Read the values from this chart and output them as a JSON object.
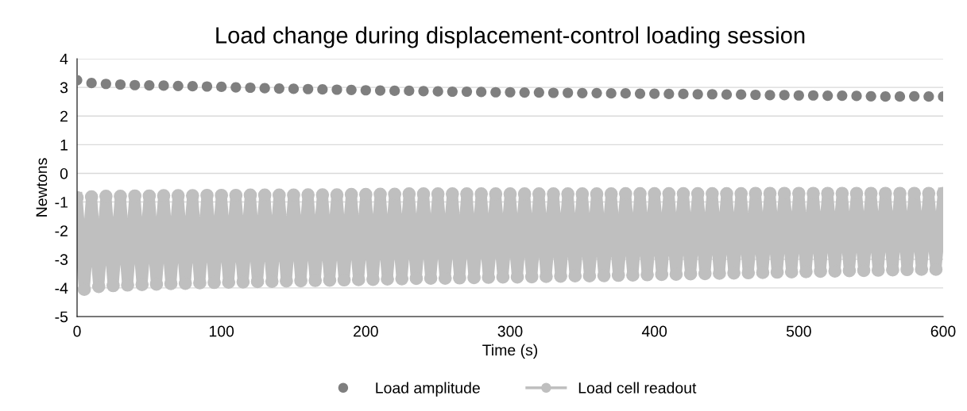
{
  "chart_data": {
    "type": "scatter",
    "title": "Load change during displacement-control loading session",
    "xlabel": "Time (s)",
    "ylabel": "Newtons",
    "xlim": [
      0,
      600
    ],
    "xticks": [
      0,
      100,
      200,
      300,
      400,
      500,
      600
    ],
    "ylim": [
      -5,
      4
    ],
    "yticks": [
      -5,
      -4,
      -3,
      -2,
      -1,
      0,
      1,
      2,
      3,
      4
    ],
    "grid": "y",
    "legend": "bottom",
    "marker": "circle",
    "series": [
      {
        "name": "Load amplitude",
        "color": "#7f7f7f",
        "x": [
          0,
          10,
          20,
          30,
          40,
          50,
          60,
          70,
          80,
          90,
          100,
          110,
          120,
          130,
          140,
          150,
          160,
          170,
          180,
          190,
          200,
          210,
          220,
          230,
          240,
          250,
          260,
          270,
          280,
          290,
          300,
          310,
          320,
          330,
          340,
          350,
          360,
          370,
          380,
          390,
          400,
          410,
          420,
          430,
          440,
          450,
          460,
          470,
          480,
          490,
          500,
          510,
          520,
          530,
          540,
          550,
          560,
          570,
          580,
          590,
          600
        ],
        "values": [
          3.25,
          3.15,
          3.12,
          3.1,
          3.08,
          3.07,
          3.06,
          3.05,
          3.04,
          3.03,
          3.02,
          3.0,
          2.99,
          2.97,
          2.96,
          2.95,
          2.94,
          2.93,
          2.92,
          2.91,
          2.9,
          2.89,
          2.88,
          2.88,
          2.87,
          2.86,
          2.85,
          2.85,
          2.84,
          2.83,
          2.83,
          2.82,
          2.82,
          2.81,
          2.81,
          2.8,
          2.8,
          2.79,
          2.79,
          2.78,
          2.78,
          2.77,
          2.77,
          2.76,
          2.76,
          2.75,
          2.75,
          2.74,
          2.73,
          2.73,
          2.72,
          2.72,
          2.71,
          2.71,
          2.7,
          2.69,
          2.68,
          2.68,
          2.69,
          2.68,
          2.68
        ]
      },
      {
        "name": "Load cell readout",
        "type": "line",
        "color": "#bfbfbf",
        "x": [
          0,
          5,
          10,
          15,
          20,
          25,
          30,
          35,
          40,
          45,
          50,
          55,
          60,
          65,
          70,
          75,
          80,
          85,
          90,
          95,
          100,
          105,
          110,
          115,
          120,
          125,
          130,
          135,
          140,
          145,
          150,
          155,
          160,
          165,
          170,
          175,
          180,
          185,
          190,
          195,
          200,
          205,
          210,
          215,
          220,
          225,
          230,
          235,
          240,
          245,
          250,
          255,
          260,
          265,
          270,
          275,
          280,
          285,
          290,
          295,
          300,
          305,
          310,
          315,
          320,
          325,
          330,
          335,
          340,
          345,
          350,
          355,
          360,
          365,
          370,
          375,
          380,
          385,
          390,
          395,
          400,
          405,
          410,
          415,
          420,
          425,
          430,
          435,
          440,
          445,
          450,
          455,
          460,
          465,
          470,
          475,
          480,
          485,
          490,
          495,
          500,
          505,
          510,
          515,
          520,
          525,
          530,
          535,
          540,
          545,
          550,
          555,
          560,
          565,
          570,
          575,
          580,
          585,
          590,
          595,
          600
        ],
        "values": [
          -0.85,
          -4.05,
          -0.82,
          -3.95,
          -0.8,
          -3.92,
          -0.8,
          -3.9,
          -0.79,
          -3.88,
          -0.79,
          -3.87,
          -0.78,
          -3.85,
          -0.78,
          -3.84,
          -0.78,
          -3.82,
          -0.77,
          -3.81,
          -0.77,
          -3.8,
          -0.77,
          -3.79,
          -0.76,
          -3.78,
          -0.76,
          -3.77,
          -0.76,
          -3.76,
          -0.76,
          -3.75,
          -0.75,
          -3.74,
          -0.75,
          -3.73,
          -0.75,
          -3.72,
          -0.74,
          -3.71,
          -0.74,
          -3.7,
          -0.73,
          -3.69,
          -0.73,
          -3.68,
          -0.72,
          -3.67,
          -0.72,
          -3.66,
          -0.72,
          -3.66,
          -0.72,
          -3.65,
          -0.72,
          -3.64,
          -0.72,
          -3.63,
          -0.72,
          -3.62,
          -0.72,
          -3.62,
          -0.72,
          -3.61,
          -0.72,
          -3.6,
          -0.72,
          -3.59,
          -0.72,
          -3.58,
          -0.72,
          -3.58,
          -0.72,
          -3.57,
          -0.72,
          -3.56,
          -0.71,
          -3.55,
          -0.71,
          -3.54,
          -0.71,
          -3.53,
          -0.71,
          -3.52,
          -0.71,
          -3.51,
          -0.71,
          -3.5,
          -0.71,
          -3.49,
          -0.71,
          -3.48,
          -0.71,
          -3.47,
          -0.7,
          -3.46,
          -0.7,
          -3.45,
          -0.7,
          -3.44,
          -0.7,
          -3.43,
          -0.7,
          -3.42,
          -0.7,
          -3.41,
          -0.7,
          -3.4,
          -0.7,
          -3.39,
          -0.7,
          -3.38,
          -0.7,
          -3.37,
          -0.7,
          -3.36,
          -0.7,
          -3.35,
          -0.7,
          -3.35,
          -0.7
        ]
      }
    ]
  }
}
